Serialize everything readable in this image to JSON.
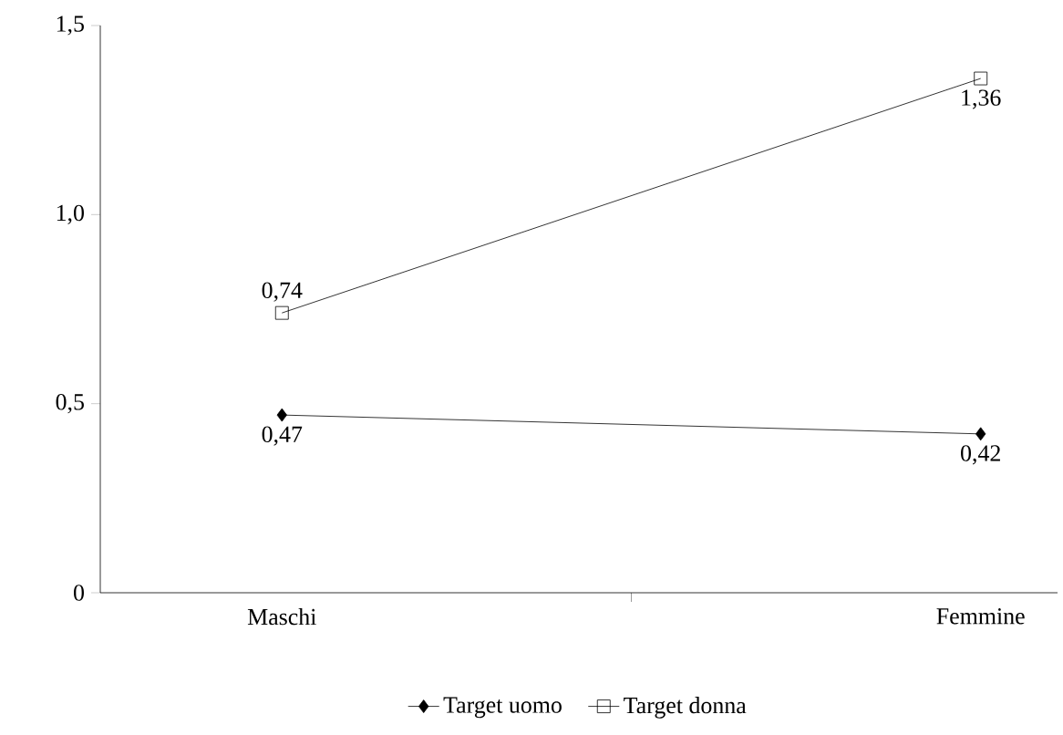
{
  "chart_data": {
    "type": "line",
    "categories": [
      "Maschi",
      "Femmine"
    ],
    "series": [
      {
        "name": "Target uomo",
        "color": "#000000",
        "marker": "diamond",
        "values": [
          0.47,
          0.42
        ],
        "value_labels": [
          "0,47",
          "0,42"
        ]
      },
      {
        "name": "Target donna",
        "color": "#000000",
        "marker": "square",
        "values": [
          0.74,
          1.36
        ],
        "value_labels": [
          "0,74",
          "1,36"
        ]
      }
    ],
    "ylim": [
      0,
      1.5
    ],
    "yticks": [
      0,
      {
        "value": 0.5,
        "label": "0,5"
      },
      {
        "value": 1.0,
        "label": "1,0"
      },
      {
        "value": 1.5,
        "label": "1,5"
      }
    ],
    "grid": false,
    "legend": "bottom",
    "line_style": "solid"
  }
}
